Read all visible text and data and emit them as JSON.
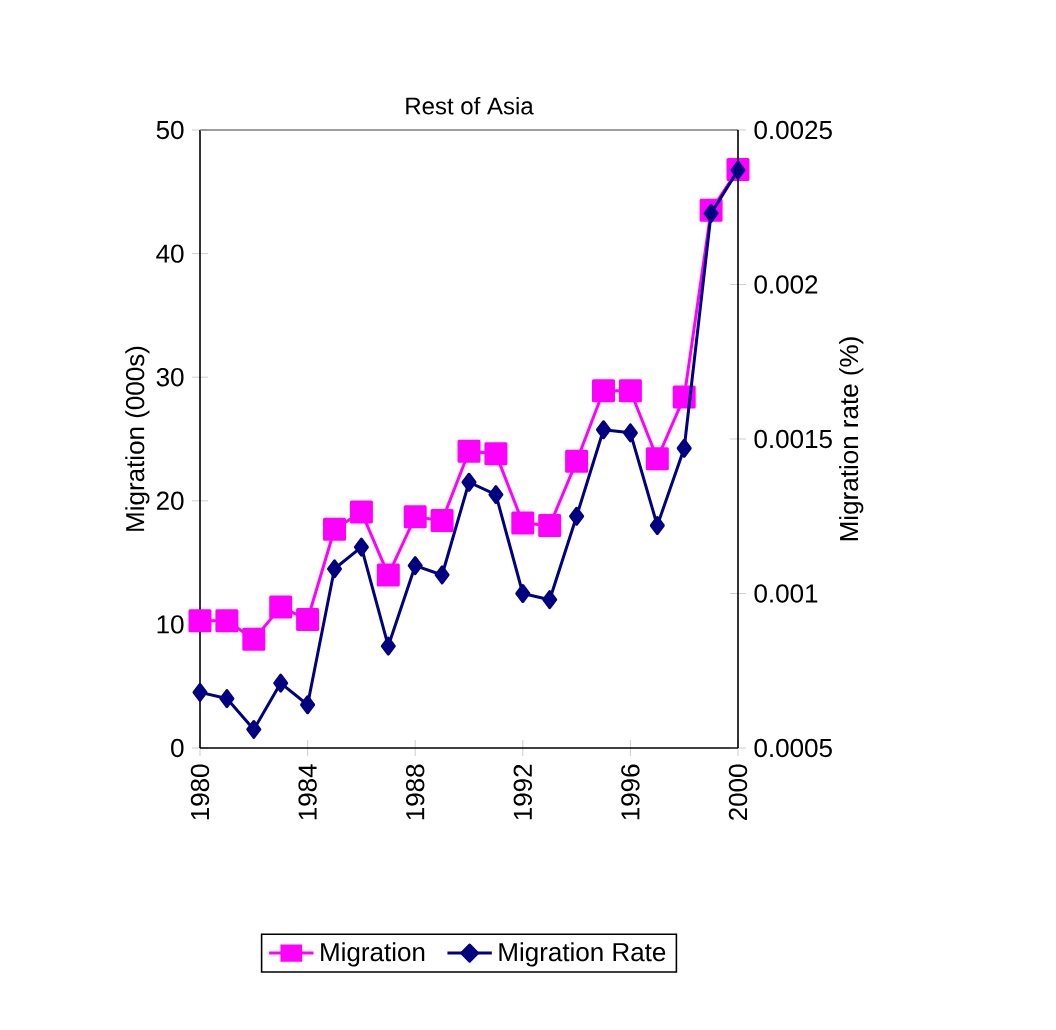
{
  "chart_data": {
    "type": "line",
    "title": "Rest of Asia",
    "ylabel": "Migration (000s)",
    "y2label": "Migration rate (%)",
    "x": [
      1980,
      1981,
      1982,
      1983,
      1984,
      1985,
      1986,
      1987,
      1988,
      1989,
      1990,
      1991,
      1992,
      1993,
      1994,
      1995,
      1996,
      1997,
      1998,
      1999,
      2000
    ],
    "xlim": [
      1980,
      2000
    ],
    "xticks": [
      1980,
      1984,
      1988,
      1992,
      1996,
      2000
    ],
    "ylim": [
      0,
      50
    ],
    "yticks": [
      0,
      10,
      20,
      30,
      40,
      50
    ],
    "y2lim": [
      0.0005,
      0.0025
    ],
    "y2ticks": [
      0.0005,
      0.001,
      0.0015,
      0.002,
      0.0025
    ],
    "legend": "bottom",
    "grid": false,
    "line_style": "solid",
    "series": [
      {
        "name": "Migration",
        "color": "#ff00ff",
        "marker": "square",
        "values": [
          10.3,
          10.3,
          8.8,
          11.4,
          10.4,
          17.7,
          19.1,
          14.0,
          18.7,
          18.4,
          24.0,
          23.8,
          18.2,
          18.0,
          23.2,
          28.9,
          28.9,
          23.4,
          28.4,
          43.5,
          46.8
        ]
      },
      {
        "name": "Migration Rate",
        "color": "#000080",
        "marker": "diamond",
        "axis": "y2",
        "values": [
          0.00068,
          0.00066,
          0.00056,
          0.00071,
          0.00064,
          0.00108,
          0.00115,
          0.00083,
          0.00109,
          0.00106,
          0.00136,
          0.00132,
          0.001,
          0.00098,
          0.00125,
          0.00153,
          0.00152,
          0.00122,
          0.00147,
          0.00223,
          0.00237
        ]
      }
    ]
  }
}
